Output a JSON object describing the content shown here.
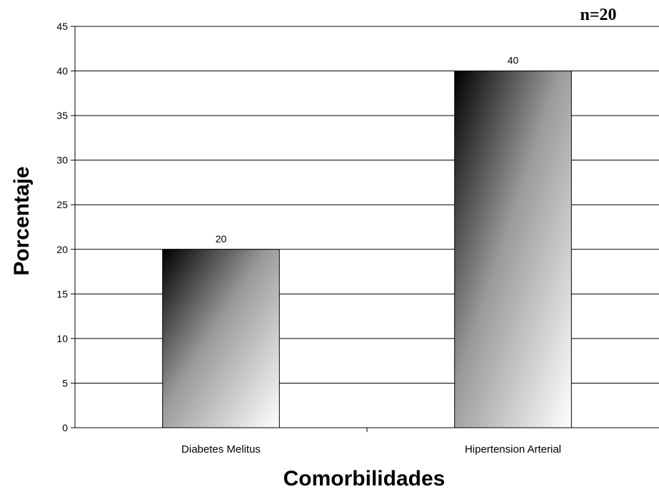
{
  "chart_data": {
    "type": "bar",
    "categories": [
      "Diabetes Melitus",
      "Hipertension Arterial"
    ],
    "values": [
      20,
      40
    ],
    "data_labels": [
      "20",
      "40"
    ],
    "title": "",
    "annotation": "n=20",
    "xlabel": "Comorbilidades",
    "ylabel": "Porcentaje",
    "ylim": [
      0,
      45
    ],
    "yticks": [
      0,
      5,
      10,
      15,
      20,
      25,
      30,
      35,
      40,
      45
    ],
    "grid": true,
    "legend": "none",
    "bar_fill": "gradient black to white",
    "colors": {
      "grid": "#000000",
      "bar_dark": "#000000",
      "bar_light": "#ffffff",
      "bar_mid": "#9a9a9a"
    }
  }
}
